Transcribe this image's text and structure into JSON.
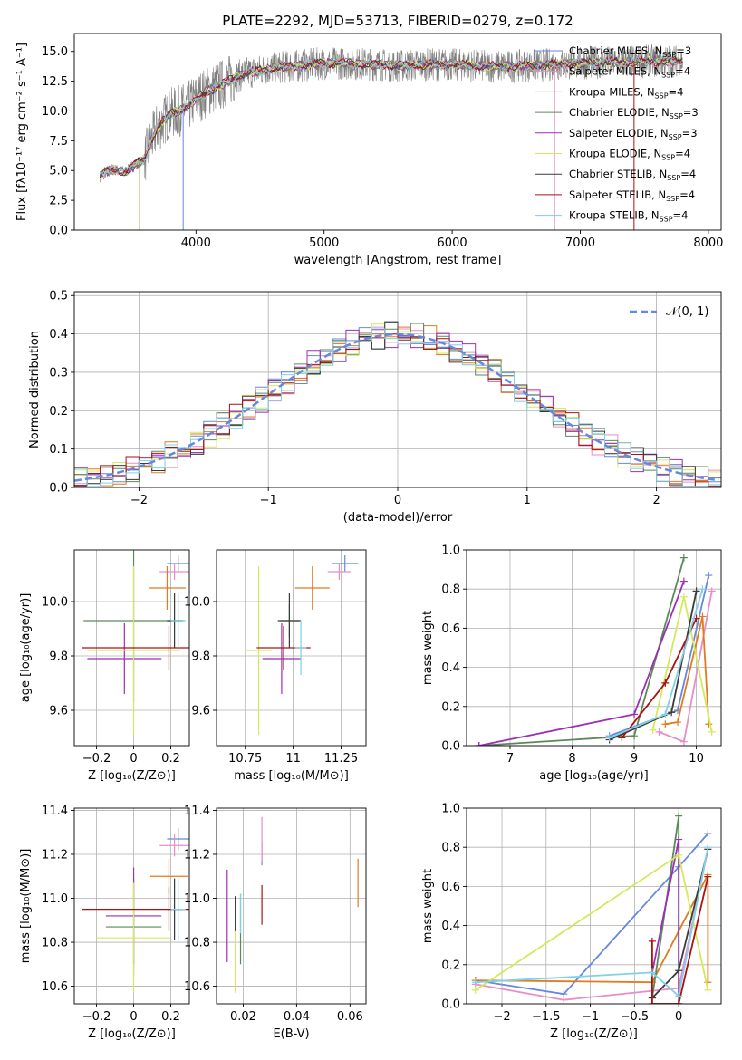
{
  "title": "PLATE=2292, MJD=53713, FIBERID=0279, z=0.172",
  "colors": [
    "#6688dd",
    "#e88ec6",
    "#e07b20",
    "#5a8a5a",
    "#9b2fb5",
    "#d6e85a",
    "#3a3a3a",
    "#aa1111",
    "#7fd0e8"
  ],
  "chart_data": [
    {
      "type": "line",
      "id": "spectrum",
      "xlabel": "wavelength [Angstrom, rest frame]",
      "ylabel": "Flux [fλ10⁻¹⁷ erg cm⁻² s⁻¹ A⁻¹]",
      "xlim": [
        3050,
        8100
      ],
      "ylim": [
        0,
        16.5
      ],
      "xticks": [
        4000,
        5000,
        6000,
        7000,
        8000
      ],
      "yticks": [
        0.0,
        2.5,
        5.0,
        7.5,
        10.0,
        12.5,
        15.0
      ],
      "grid": false,
      "legend_position": "top-right",
      "data_series_name": "",
      "data_x": [
        3250,
        3300,
        3350,
        3400,
        3450,
        3500,
        3550,
        3600,
        3650,
        3700,
        3750,
        3800,
        3850,
        3900,
        3950,
        4000,
        4100,
        4200,
        4300,
        4400,
        4500,
        4600,
        4700,
        4800,
        4900,
        5000,
        5200,
        5400,
        5600,
        5800,
        6000,
        6200,
        6400,
        6600,
        6800,
        7000,
        7200,
        7400,
        7600,
        7800
      ],
      "data_y": [
        4.5,
        4.9,
        5.1,
        5.0,
        4.9,
        5.3,
        5.7,
        6.0,
        7.5,
        8.6,
        9.2,
        9.8,
        9.9,
        10.2,
        10.5,
        11.0,
        11.7,
        12.2,
        12.8,
        13.2,
        13.4,
        13.6,
        13.7,
        13.8,
        13.9,
        14.0,
        14.0,
        13.9,
        13.8,
        13.9,
        13.9,
        13.8,
        13.7,
        13.8,
        13.9,
        14.0,
        14.1,
        14.1,
        14.2,
        14.2
      ],
      "series": [
        {
          "name": "Chabrier MILES, N_SSP=3",
          "label_pre": "Chabrier MILES, N",
          "label_sub": "SSP",
          "label_post": "=3"
        },
        {
          "name": "Salpeter MILES, N_SSP=4",
          "label_pre": "Salpeter MILES, N",
          "label_sub": "SSP",
          "label_post": "=4"
        },
        {
          "name": "Kroupa MILES, N_SSP=4",
          "label_pre": "Kroupa MILES, N",
          "label_sub": "SSP",
          "label_post": "=4"
        },
        {
          "name": "Chabrier ELODIE, N_SSP=3",
          "label_pre": "Chabrier ELODIE, N",
          "label_sub": "SSP",
          "label_post": "=3"
        },
        {
          "name": "Salpeter ELODIE, N_SSP=3",
          "label_pre": "Salpeter ELODIE, N",
          "label_sub": "SSP",
          "label_post": "=3"
        },
        {
          "name": "Kroupa ELODIE, N_SSP=4",
          "label_pre": "Kroupa ELODIE, N",
          "label_sub": "SSP",
          "label_post": "=4"
        },
        {
          "name": "Chabrier STELIB, N_SSP=4",
          "label_pre": "Chabrier STELIB, N",
          "label_sub": "SSP",
          "label_post": "=4"
        },
        {
          "name": "Salpeter STELIB, N_SSP=4",
          "label_pre": "Salpeter STELIB, N",
          "label_sub": "SSP",
          "label_post": "=4"
        },
        {
          "name": "Kroupa STELIB, N_SSP=4",
          "label_pre": "Kroupa STELIB, N",
          "label_sub": "SSP",
          "label_post": "=4"
        }
      ]
    },
    {
      "type": "histogram",
      "id": "residuals",
      "xlabel": "(data-model)/error",
      "ylabel": "Normed distribution",
      "xlim": [
        -2.5,
        2.5
      ],
      "ylim": [
        0,
        0.51
      ],
      "xticks": [
        -2,
        -1,
        0,
        1,
        2
      ],
      "yticks": [
        0.0,
        0.1,
        0.2,
        0.3,
        0.4,
        0.5
      ],
      "grid": true,
      "legend_position": "top-right",
      "reference_curve": {
        "name": "N(0,1)",
        "label": "𝒩(0, 1)",
        "mean": 0,
        "sigma": 1,
        "color": "#6688dd"
      },
      "bin_width": 0.1,
      "bins_x": [
        -2.5,
        2.5
      ]
    },
    {
      "type": "scatter",
      "id": "age-vs-z",
      "xlabel": "Z [log₁₀(Z/Z⊙)]",
      "ylabel": "age  [log₁₀(age/yr)]",
      "xlim": [
        -0.32,
        0.3
      ],
      "ylim": [
        9.47,
        10.19
      ],
      "xticks": [
        -0.2,
        0.0,
        0.2
      ],
      "yticks": [
        9.6,
        9.8,
        10.0
      ],
      "grid": true,
      "points": [
        {
          "x": 0.24,
          "y": 10.14,
          "xerr": 0.06,
          "yerr": 0.03
        },
        {
          "x": 0.22,
          "y": 10.11,
          "xerr": 0.08,
          "yerr": 0.03
        },
        {
          "x": 0.18,
          "y": 10.05,
          "xerr": 0.1,
          "yerr": 0.08
        },
        {
          "x": 0.0,
          "y": 9.93,
          "xerr": 0.27,
          "yerr": 0.3
        },
        {
          "x": -0.05,
          "y": 9.79,
          "xerr": 0.2,
          "yerr": 0.13
        },
        {
          "x": 0.0,
          "y": 9.82,
          "xerr": 0.25,
          "yerr": 0.31
        },
        {
          "x": 0.22,
          "y": 9.93,
          "xerr": 0.04,
          "yerr": 0.1
        },
        {
          "x": 0.19,
          "y": 9.83,
          "xerr": 0.47,
          "yerr": 0.08
        },
        {
          "x": 0.24,
          "y": 9.93,
          "xerr": 0.04,
          "yerr": 0.1
        }
      ]
    },
    {
      "type": "scatter",
      "id": "age-vs-mass",
      "xlabel": "mass [log₁₀(M/M⊙)]",
      "ylabel": "",
      "xlim": [
        10.6,
        11.38
      ],
      "ylim": [
        9.47,
        10.19
      ],
      "xticks": [
        10.75,
        11.0,
        11.25
      ],
      "yticks": [
        9.6,
        9.8,
        10.0
      ],
      "grid": true,
      "points": [
        {
          "x": 11.27,
          "y": 10.14,
          "xerr": 0.07,
          "yerr": 0.03
        },
        {
          "x": 11.24,
          "y": 10.11,
          "xerr": 0.06,
          "yerr": 0.03
        },
        {
          "x": 11.1,
          "y": 10.05,
          "xerr": 0.09,
          "yerr": 0.08
        },
        {
          "x": 10.98,
          "y": 9.93,
          "xerr": 0.05,
          "yerr": 0.06
        },
        {
          "x": 10.94,
          "y": 9.79,
          "xerr": 0.1,
          "yerr": 0.13
        },
        {
          "x": 10.82,
          "y": 9.82,
          "xerr": 0.07,
          "yerr": 0.31
        },
        {
          "x": 10.98,
          "y": 9.93,
          "xerr": 0.06,
          "yerr": 0.1
        },
        {
          "x": 10.95,
          "y": 9.83,
          "xerr": 0.14,
          "yerr": 0.08
        },
        {
          "x": 11.04,
          "y": 9.83,
          "xerr": 0.03,
          "yerr": 0.1
        }
      ]
    },
    {
      "type": "line",
      "id": "massweight-vs-age",
      "xlabel": "age  [log₁₀(age/yr)]",
      "ylabel": "mass weight",
      "xlim": [
        6.3,
        10.4
      ],
      "ylim": [
        0,
        1.0
      ],
      "xticks": [
        7,
        8,
        9,
        10
      ],
      "yticks": [
        0.0,
        0.2,
        0.4,
        0.6,
        0.8,
        1.0
      ],
      "grid": true,
      "series": [
        {
          "x": [
            8.6,
            9.7,
            10.2
          ],
          "y": [
            0.05,
            0.18,
            0.87
          ]
        },
        {
          "x": [
            9.4,
            9.8,
            10.25
          ],
          "y": [
            0.07,
            0.02,
            0.79
          ]
        },
        {
          "x": [
            9.5,
            9.7,
            10.1,
            10.2
          ],
          "y": [
            0.11,
            0.12,
            0.66,
            0.11
          ]
        },
        {
          "x": [
            6.5,
            9.0,
            9.8
          ],
          "y": [
            0.0,
            0.05,
            0.96
          ]
        },
        {
          "x": [
            6.5,
            9.0,
            9.8
          ],
          "y": [
            0.0,
            0.16,
            0.84
          ]
        },
        {
          "x": [
            9.3,
            9.8,
            10.25
          ],
          "y": [
            0.08,
            0.76,
            0.07
          ]
        },
        {
          "x": [
            8.6,
            9.6,
            10.0
          ],
          "y": [
            0.03,
            0.17,
            0.79
          ]
        },
        {
          "x": [
            8.8,
            9.5,
            10.0
          ],
          "y": [
            0.04,
            0.32,
            0.65
          ]
        },
        {
          "x": [
            8.6,
            9.5,
            10.1
          ],
          "y": [
            0.04,
            0.16,
            0.8
          ]
        }
      ]
    },
    {
      "type": "scatter",
      "id": "mass-vs-z",
      "xlabel": "Z [log₁₀(Z/Z⊙)]",
      "ylabel": "mass [log₁₀(M/M⊙)]",
      "xlim": [
        -0.32,
        0.3
      ],
      "ylim": [
        10.52,
        11.41
      ],
      "xticks": [
        -0.2,
        0.0,
        0.2
      ],
      "yticks": [
        10.6,
        10.8,
        11.0,
        11.2,
        11.4
      ],
      "grid": true,
      "points": [
        {
          "x": 0.24,
          "y": 11.27,
          "xerr": 0.06,
          "yerr": 0.05
        },
        {
          "x": 0.22,
          "y": 11.24,
          "xerr": 0.08,
          "yerr": 0.05
        },
        {
          "x": 0.19,
          "y": 11.1,
          "xerr": 0.1,
          "yerr": 0.08
        },
        {
          "x": 0.0,
          "y": 10.87,
          "xerr": 0.15,
          "yerr": 0.22
        },
        {
          "x": 0.0,
          "y": 10.92,
          "xerr": 0.15,
          "yerr": 0.22
        },
        {
          "x": 0.0,
          "y": 10.82,
          "xerr": 0.2,
          "yerr": 0.25
        },
        {
          "x": 0.22,
          "y": 10.95,
          "xerr": 0.04,
          "yerr": 0.14
        },
        {
          "x": 0.19,
          "y": 10.95,
          "xerr": 0.47,
          "yerr": 0.1
        },
        {
          "x": 0.24,
          "y": 10.95,
          "xerr": 0.04,
          "yerr": 0.14
        }
      ]
    },
    {
      "type": "scatter",
      "id": "mass-vs-ebv",
      "xlabel": "E(B-V)",
      "ylabel": "",
      "xlim": [
        0.01,
        0.066
      ],
      "ylim": [
        10.52,
        11.41
      ],
      "xticks": [
        0.02,
        0.04,
        0.06
      ],
      "yticks": [
        10.6,
        10.8,
        11.0,
        11.2,
        11.4
      ],
      "grid": true,
      "points": [
        {
          "x": 0.027,
          "y": 11.2,
          "xerr": 0,
          "yerr": 0.05
        },
        {
          "x": 0.027,
          "y": 11.27,
          "xerr": 0,
          "yerr": 0.1
        },
        {
          "x": 0.063,
          "y": 11.07,
          "xerr": 0,
          "yerr": 0.11
        },
        {
          "x": 0.019,
          "y": 10.86,
          "xerr": 0,
          "yerr": 0.16
        },
        {
          "x": 0.014,
          "y": 10.92,
          "xerr": 0,
          "yerr": 0.21
        },
        {
          "x": 0.017,
          "y": 10.77,
          "xerr": 0,
          "yerr": 0.2
        },
        {
          "x": 0.017,
          "y": 10.93,
          "xerr": 0,
          "yerr": 0.08
        },
        {
          "x": 0.027,
          "y": 10.97,
          "xerr": 0,
          "yerr": 0.09
        },
        {
          "x": 0.019,
          "y": 10.93,
          "xerr": 0,
          "yerr": 0.09
        }
      ]
    },
    {
      "type": "line",
      "id": "massweight-vs-z",
      "xlabel": "Z [log₁₀(Z/Z⊙)]",
      "ylabel": "mass weight",
      "xlim": [
        -2.4,
        0.48
      ],
      "ylim": [
        0,
        1.0
      ],
      "xticks": [
        -2.0,
        -1.5,
        -1.0,
        -0.5,
        0.0
      ],
      "yticks": [
        0.0,
        0.2,
        0.4,
        0.6,
        0.8,
        1.0
      ],
      "grid": true,
      "series": [
        {
          "x": [
            -2.3,
            -1.3,
            0.0,
            0.33
          ],
          "y": [
            0.12,
            0.05,
            0.7,
            0.87
          ]
        },
        {
          "x": [
            -2.3,
            -1.3,
            0.0,
            0.33
          ],
          "y": [
            0.1,
            0.02,
            0.08,
            0.79
          ]
        },
        {
          "x": [
            -2.3,
            -0.3,
            0.33,
            0.33
          ],
          "y": [
            0.12,
            0.11,
            0.66,
            0.11
          ]
        },
        {
          "x": [
            -0.3,
            0.0,
            0.0
          ],
          "y": [
            0.03,
            0.96,
            0.0
          ]
        },
        {
          "x": [
            -0.3,
            0.0,
            0.0
          ],
          "y": [
            0.16,
            0.84,
            0.0
          ]
        },
        {
          "x": [
            -2.3,
            0.0,
            0.33
          ],
          "y": [
            0.07,
            0.76,
            0.07
          ]
        },
        {
          "x": [
            -0.3,
            0.0,
            0.33
          ],
          "y": [
            0.03,
            0.17,
            0.79
          ]
        },
        {
          "x": [
            -0.3,
            -0.3,
            0.0,
            0.33
          ],
          "y": [
            0.32,
            0.0,
            0.0,
            0.65
          ]
        },
        {
          "x": [
            -2.3,
            -0.3,
            0.0,
            0.33
          ],
          "y": [
            0.11,
            0.16,
            0.04,
            0.8
          ]
        }
      ]
    }
  ]
}
